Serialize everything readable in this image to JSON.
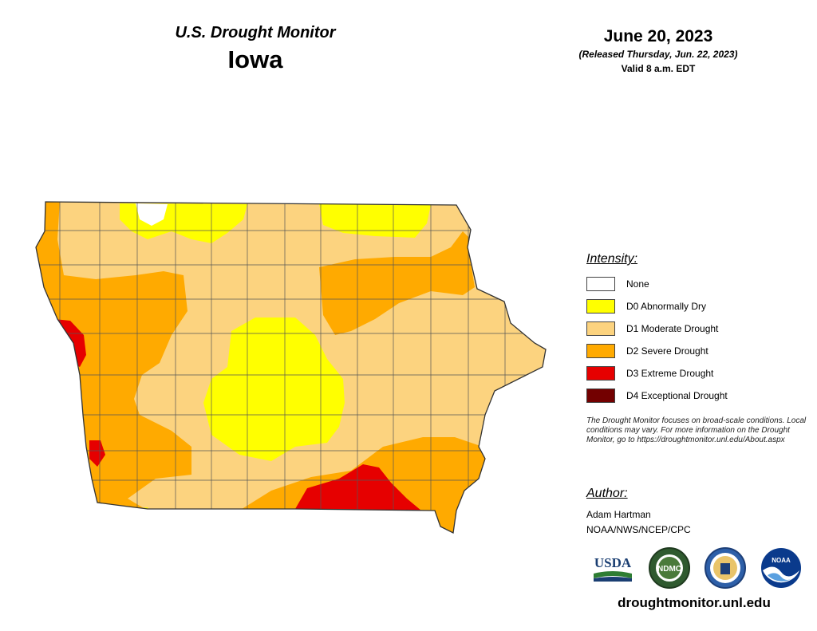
{
  "header": {
    "product_title": "U.S. Drought Monitor",
    "state": "Iowa",
    "map_date": "June 20, 2023",
    "release_note": "(Released Thursday, Jun. 22, 2023)",
    "valid_time": "Valid 8 a.m. EDT"
  },
  "legend": {
    "title": "Intensity:",
    "items": [
      {
        "label": "None",
        "color": "#ffffff"
      },
      {
        "label": "D0 Abnormally Dry",
        "color": "#ffff00"
      },
      {
        "label": "D1 Moderate Drought",
        "color": "#fcd37f"
      },
      {
        "label": "D2 Severe Drought",
        "color": "#ffaa00"
      },
      {
        "label": "D3 Extreme Drought",
        "color": "#e60000"
      },
      {
        "label": "D4 Exceptional Drought",
        "color": "#730000"
      }
    ]
  },
  "disclaimer": "The Drought Monitor focuses on broad-scale conditions. Local conditions may vary. For more information on the Drought Monitor, go to https://droughtmonitor.unl.edu/About.aspx",
  "author": {
    "title": "Author:",
    "name": "Adam Hartman",
    "org": "NOAA/NWS/NCEP/CPC"
  },
  "logos": {
    "usda": "USDA",
    "ndmc": "NDMC",
    "noaa": "NOAA",
    "icons": [
      "usda-logo",
      "ndmc-logo",
      "commerce-seal",
      "noaa-logo"
    ]
  },
  "website": "droughtmonitor.unl.edu"
}
